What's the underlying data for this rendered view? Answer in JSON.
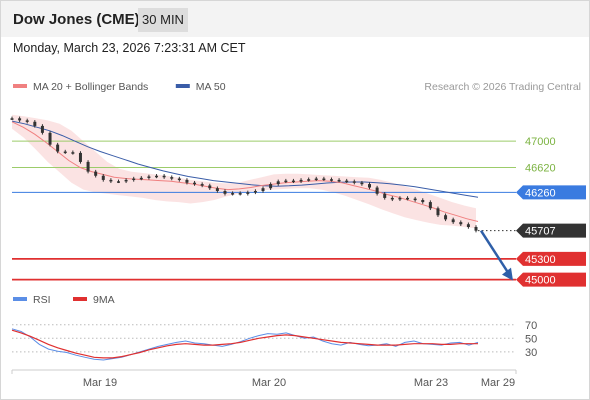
{
  "header": {
    "title": "Dow Jones (CME)",
    "interval": "30 MIN",
    "datetime": "Monday, March 23, 2026 7:23:31 AM CET"
  },
  "colors": {
    "ma20": "#f08080",
    "ma50": "#3a5da8",
    "price": "#333333",
    "band_fill": "#fbe0e0",
    "resistance": "#9ccc6a",
    "pivot": "#3a7be0",
    "support": "#e03030",
    "current": "#333333",
    "rsi": "#5b8ee6",
    "rsi_ma": "#e03030",
    "arrow": "#2f5fa8"
  },
  "chart_data": [
    {
      "type": "line",
      "title": "",
      "legend": [
        {
          "label": "MA 20 + Bollinger Bands",
          "color": "#f08080"
        },
        {
          "label": "MA 50",
          "color": "#3a5da8"
        }
      ],
      "legend_position": "top-left",
      "copyright": "Research © 2026 Trading Central",
      "x_ticks": [
        "Mar 19",
        "Mar 20",
        "Mar 23",
        "Mar 29"
      ],
      "ylim": [
        44850,
        47450
      ],
      "price": [
        47330,
        47300,
        47280,
        47220,
        47120,
        46950,
        46850,
        46840,
        46830,
        46700,
        46560,
        46500,
        46440,
        46420,
        46420,
        46440,
        46460,
        46470,
        46490,
        46500,
        46480,
        46460,
        46440,
        46400,
        46380,
        46360,
        46320,
        46280,
        46240,
        46250,
        46240,
        46260,
        46280,
        46320,
        46380,
        46420,
        46430,
        46420,
        46440,
        46450,
        46460,
        46450,
        46440,
        46430,
        46420,
        46400,
        46380,
        46330,
        46240,
        46180,
        46160,
        46180,
        46170,
        46150,
        46120,
        46030,
        45930,
        45870,
        45830,
        45800,
        45760,
        45707
      ],
      "ma20": [
        47280,
        47200,
        47100,
        46980,
        46850,
        46720,
        46620,
        46560,
        46520,
        46480,
        46460,
        46450,
        46440,
        46430,
        46420,
        46400,
        46380,
        46350,
        46320,
        46300,
        46310,
        46330,
        46360,
        46380,
        46400,
        46410,
        46420,
        46430,
        46420,
        46400,
        46360,
        46320,
        46280,
        46230,
        46190,
        46140,
        46090,
        46040,
        45980,
        45930,
        45880,
        45840
      ],
      "ma20_upper": [
        47380,
        47360,
        47330,
        47300,
        47250,
        47150,
        47000,
        46850,
        46700,
        46600,
        46560,
        46540,
        46520,
        46500,
        46470,
        46440,
        46420,
        46400,
        46390,
        46400,
        46440,
        46480,
        46520,
        46530,
        46530,
        46520,
        46510,
        46500,
        46490,
        46480,
        46470,
        46440,
        46400,
        46350,
        46300,
        46240,
        46180,
        46120,
        46070,
        46030
      ],
      "ma20_lower": [
        47180,
        47050,
        46880,
        46700,
        46550,
        46400,
        46300,
        46260,
        46240,
        46220,
        46200,
        46180,
        46150,
        46130,
        46120,
        46100,
        46120,
        46150,
        46200,
        46240,
        46270,
        46290,
        46300,
        46310,
        46320,
        46320,
        46300,
        46260,
        46210,
        46150,
        46090,
        46020,
        45960,
        45900,
        45860,
        45820,
        45790,
        45780,
        45760,
        45740
      ],
      "ma50": [
        47290,
        47250,
        47200,
        47150,
        47080,
        47000,
        46920,
        46850,
        46790,
        46730,
        46670,
        46620,
        46570,
        46530,
        46490,
        46460,
        46430,
        46410,
        46390,
        46370,
        46355,
        46350,
        46355,
        46365,
        46380,
        46395,
        46405,
        46410,
        46410,
        46400,
        46385,
        46365,
        46340,
        46310,
        46280,
        46250,
        46220,
        46190
      ],
      "levels": [
        {
          "value": 47000,
          "label": "47000",
          "kind": "resistance"
        },
        {
          "value": 46620,
          "label": "46620",
          "kind": "resistance"
        },
        {
          "value": 46260,
          "label": "46260",
          "kind": "pivot"
        },
        {
          "value": 45707,
          "label": "45707",
          "kind": "current"
        },
        {
          "value": 45300,
          "label": "45300",
          "kind": "support"
        },
        {
          "value": 45000,
          "label": "45000",
          "kind": "support"
        }
      ],
      "forecast_arrow": {
        "from": 45707,
        "to": 45000
      }
    },
    {
      "type": "line",
      "legend": [
        {
          "label": "RSI",
          "color": "#5b8ee6"
        },
        {
          "label": "9MA",
          "color": "#e03030"
        }
      ],
      "ylim": [
        15,
        80
      ],
      "y_ticks": [
        70,
        50,
        30
      ],
      "rsi": [
        64,
        60,
        52,
        41,
        34,
        31,
        29,
        25,
        22,
        19,
        18,
        20,
        22,
        26,
        30,
        34,
        38,
        41,
        44,
        46,
        43,
        42,
        40,
        38,
        41,
        45,
        50,
        54,
        57,
        56,
        58,
        54,
        50,
        52,
        46,
        42,
        40,
        44,
        41,
        39,
        40,
        42,
        38,
        44,
        46,
        42,
        41,
        40,
        43,
        44,
        40,
        44
      ],
      "rsi_ma": [
        62,
        58,
        53,
        47,
        41,
        36,
        32,
        28,
        25,
        22,
        21,
        21,
        23,
        26,
        29,
        33,
        36,
        39,
        41,
        42,
        41,
        40,
        40,
        41,
        42,
        44,
        47,
        50,
        52,
        54,
        55,
        54,
        52,
        50,
        48,
        46,
        44,
        43,
        42,
        41,
        40,
        40,
        40,
        41,
        42,
        42,
        42,
        41,
        41,
        42,
        42,
        42
      ]
    }
  ]
}
